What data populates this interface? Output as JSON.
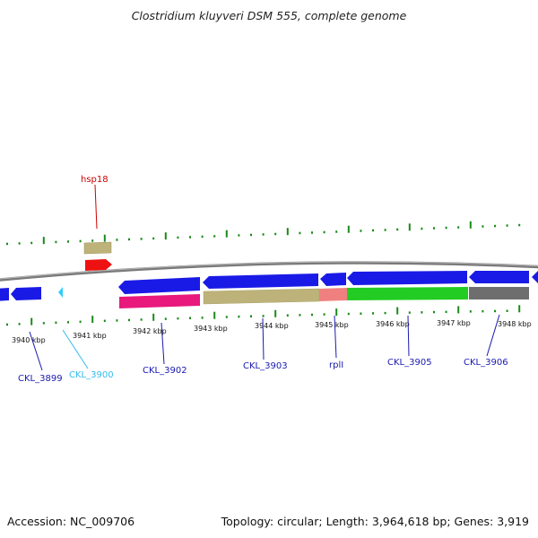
{
  "title": "Clostridium kluyveri DSM 555, complete genome",
  "footer": {
    "accession": "Accession: NC_009706",
    "topology": "Topology: circular; Length: 3,964,618 bp; Genes: 3,919"
  },
  "colors": {
    "backbone": "#808080",
    "ticks_major": "#1a8a1a",
    "ticks_minor": "#2aa02a"
  },
  "scale_labels": [
    "3940 kbp",
    "3941 kbp",
    "3942 kbp",
    "3943 kbp",
    "3944 kbp",
    "3945 kbp",
    "3946 kbp",
    "3947 kbp",
    "3948 kbp"
  ],
  "genes": [
    {
      "id": "g-left-a",
      "strand": "minus",
      "track": "inner",
      "color": "#1a1ae6"
    },
    {
      "id": "g-left-b",
      "strand": "minus",
      "track": "inner",
      "color": "#1a1ae6"
    },
    {
      "id": "g-3900",
      "strand": "minus",
      "track": "inner",
      "color": "#33ccff"
    },
    {
      "id": "g-3902",
      "strand": "minus",
      "track": "inner",
      "color": "#1a1ae6"
    },
    {
      "id": "g-3903",
      "strand": "minus",
      "track": "inner",
      "color": "#1a1ae6"
    },
    {
      "id": "g-rpll",
      "strand": "minus",
      "track": "inner",
      "color": "#1a1ae6"
    },
    {
      "id": "g-3905",
      "strand": "minus",
      "track": "inner",
      "color": "#1a1ae6"
    },
    {
      "id": "g-3906",
      "strand": "minus",
      "track": "inner",
      "color": "#1a1ae6"
    },
    {
      "id": "g-right",
      "strand": "minus",
      "track": "inner",
      "color": "#1a1ae6"
    },
    {
      "id": "hsp18-cds",
      "strand": "plus",
      "track": "outer",
      "color": "#ee1111"
    },
    {
      "id": "hsp18-feature",
      "strand": "plus",
      "track": "outer2",
      "color": "#bdb37a"
    }
  ],
  "features": [
    {
      "id": "f-pink",
      "color": "#e8187d"
    },
    {
      "id": "f-khaki",
      "color": "#bdb37a"
    },
    {
      "id": "f-salmon",
      "color": "#f08080"
    },
    {
      "id": "f-green",
      "color": "#22cc22"
    },
    {
      "id": "f-gray",
      "color": "#6e6e6e"
    }
  ],
  "gene_labels": [
    {
      "text": "CKL_3899",
      "color": "#1a1ab0"
    },
    {
      "text": "CKL_3900",
      "color": "#33bbee"
    },
    {
      "text": "CKL_3902",
      "color": "#1a1ab0"
    },
    {
      "text": "CKL_3903",
      "color": "#1a1ab0"
    },
    {
      "text": "rplI",
      "color": "#1a1ab0"
    },
    {
      "text": "CKL_3905",
      "color": "#1a1ab0"
    },
    {
      "text": "CKL_3906",
      "color": "#1a1ab0"
    },
    {
      "text": "hsp18",
      "color": "#cc0000"
    }
  ]
}
